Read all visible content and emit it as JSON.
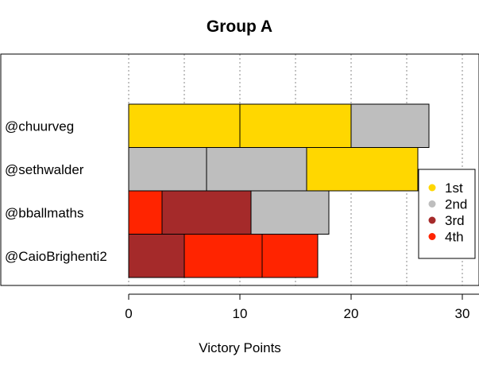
{
  "chart_data": {
    "type": "bar",
    "orientation": "horizontal",
    "stacked": true,
    "title": "Group A",
    "xlabel": "Victory Points",
    "ylabel": "",
    "xlim": [
      0,
      30
    ],
    "xticks": [
      0,
      10,
      20,
      30
    ],
    "grid": "vertical dashed every 5",
    "legend_position": "right",
    "categories": [
      "@chuurveg",
      "@sethwalder",
      "@bballmaths",
      "@CaioBrighenti2"
    ],
    "legend": [
      {
        "label": "1st",
        "color": "#FFD700"
      },
      {
        "label": "2nd",
        "color": "#BEBEBE"
      },
      {
        "label": "3rd",
        "color": "#A52A2A"
      },
      {
        "label": "4th",
        "color": "#FF2400"
      }
    ],
    "segments": [
      [
        {
          "placement": "1st",
          "value": 10
        },
        {
          "placement": "1st",
          "value": 10
        },
        {
          "placement": "2nd",
          "value": 7
        }
      ],
      [
        {
          "placement": "2nd",
          "value": 7
        },
        {
          "placement": "2nd",
          "value": 9
        },
        {
          "placement": "1st",
          "value": 10
        }
      ],
      [
        {
          "placement": "4th",
          "value": 3
        },
        {
          "placement": "3rd",
          "value": 8
        },
        {
          "placement": "2nd",
          "value": 7
        }
      ],
      [
        {
          "placement": "3rd",
          "value": 5
        },
        {
          "placement": "4th",
          "value": 7
        },
        {
          "placement": "4th",
          "value": 5
        }
      ]
    ]
  }
}
